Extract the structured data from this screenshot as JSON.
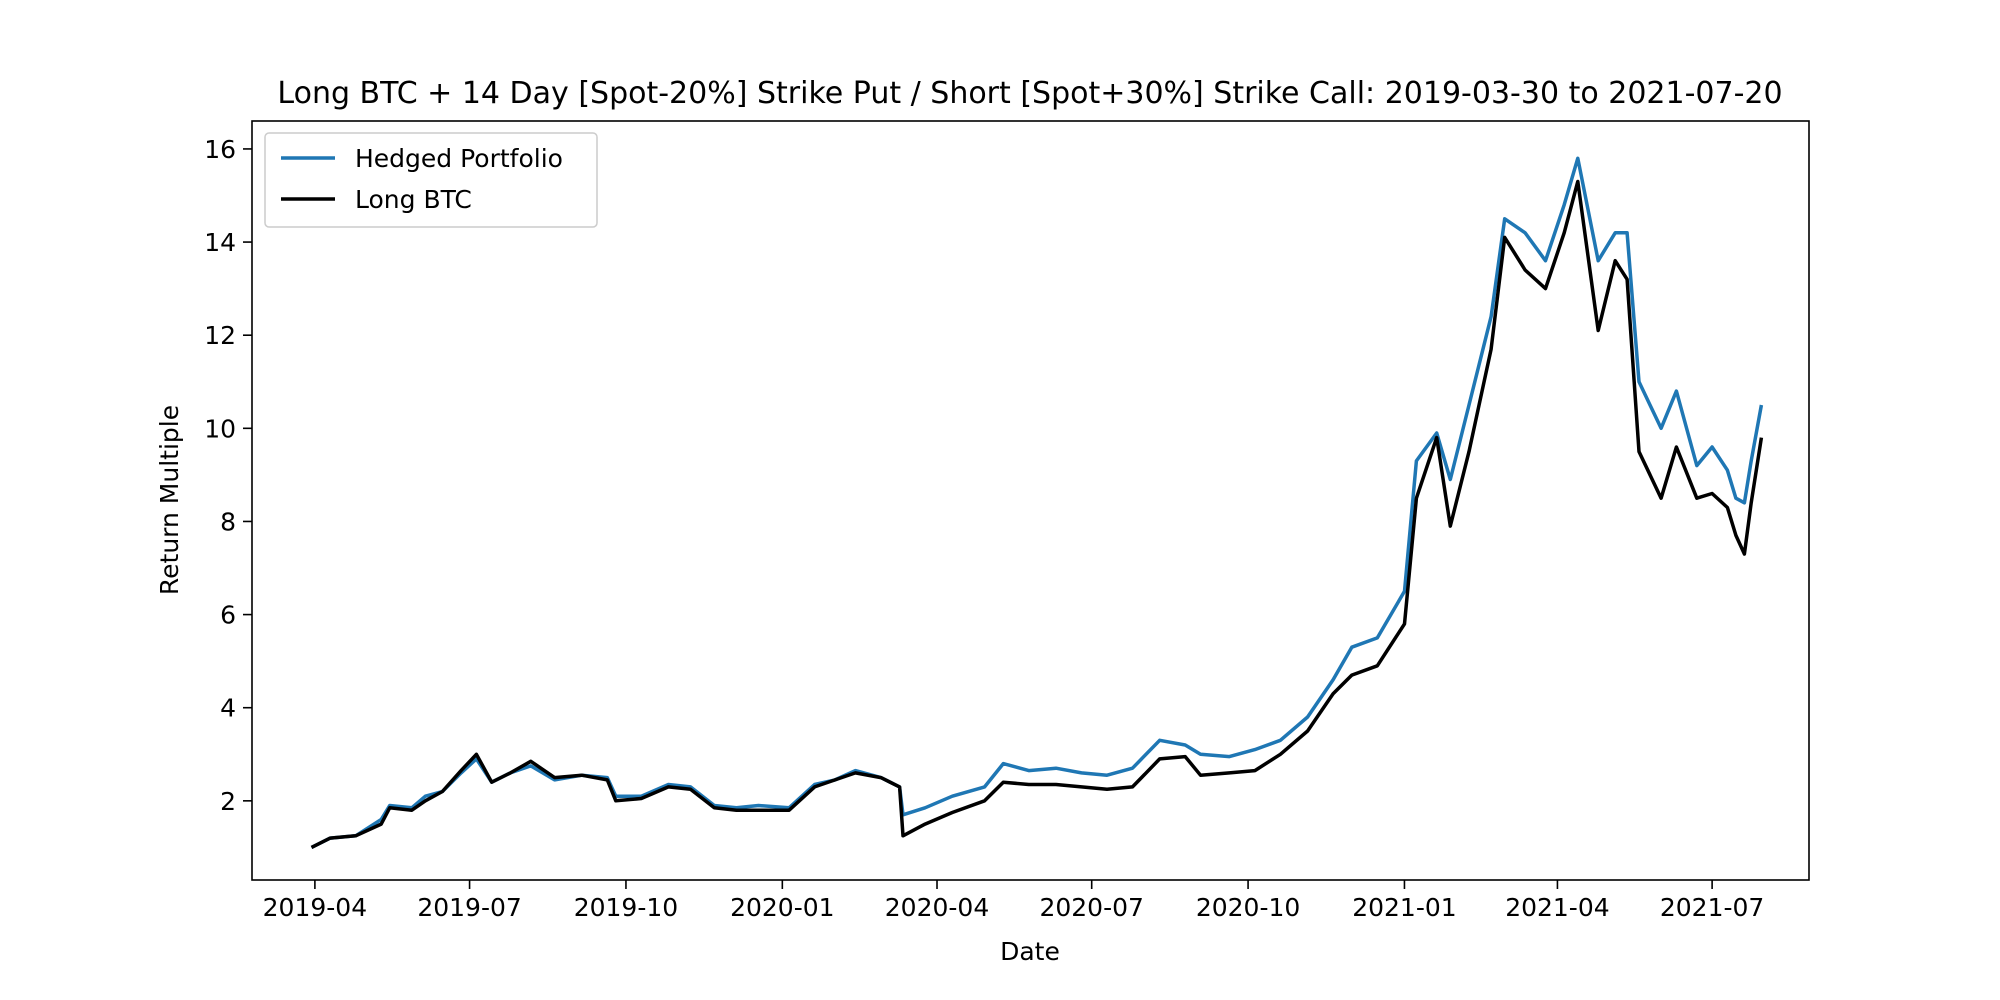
{
  "chart_data": {
    "type": "line",
    "title": "Long BTC + 14 Day [Spot-20%] Strike Put / Short [Spot+30%] Strike Call: 2019-03-30 to 2021-07-20",
    "xlabel": "Date",
    "ylabel": "Return Multiple",
    "xlim": [
      "2019-02-23",
      "2021-08-27"
    ],
    "ylim": [
      0.3,
      16.6
    ],
    "x_ticks": [
      "2019-04",
      "2019-07",
      "2019-10",
      "2020-01",
      "2020-04",
      "2020-07",
      "2020-10",
      "2021-01",
      "2021-04",
      "2021-07"
    ],
    "y_ticks": [
      2,
      4,
      6,
      8,
      10,
      12,
      14,
      16
    ],
    "grid": false,
    "legend": "upper left",
    "colors": {
      "hedged": "#1f77b4",
      "long": "#000000"
    },
    "x": [
      "2019-03-30",
      "2019-04-10",
      "2019-04-25",
      "2019-05-10",
      "2019-05-15",
      "2019-05-28",
      "2019-06-05",
      "2019-06-15",
      "2019-06-26",
      "2019-07-05",
      "2019-07-14",
      "2019-07-25",
      "2019-08-06",
      "2019-08-20",
      "2019-09-05",
      "2019-09-20",
      "2019-09-25",
      "2019-10-10",
      "2019-10-26",
      "2019-11-08",
      "2019-11-22",
      "2019-12-05",
      "2019-12-18",
      "2020-01-05",
      "2020-01-20",
      "2020-02-01",
      "2020-02-13",
      "2020-02-28",
      "2020-03-10",
      "2020-03-12",
      "2020-03-25",
      "2020-04-10",
      "2020-04-29",
      "2020-05-10",
      "2020-05-25",
      "2020-06-10",
      "2020-06-25",
      "2020-07-10",
      "2020-07-25",
      "2020-08-10",
      "2020-08-25",
      "2020-09-03",
      "2020-09-20",
      "2020-10-05",
      "2020-10-20",
      "2020-11-05",
      "2020-11-20",
      "2020-12-01",
      "2020-12-16",
      "2021-01-01",
      "2021-01-08",
      "2021-01-20",
      "2021-01-28",
      "2021-02-08",
      "2021-02-21",
      "2021-03-01",
      "2021-03-13",
      "2021-03-25",
      "2021-04-05",
      "2021-04-13",
      "2021-04-25",
      "2021-05-05",
      "2021-05-12",
      "2021-05-19",
      "2021-06-01",
      "2021-06-10",
      "2021-06-22",
      "2021-07-01",
      "2021-07-10",
      "2021-07-15",
      "2021-07-20",
      "2021-07-24",
      "2021-07-30"
    ],
    "series": [
      {
        "name": "Hedged Portfolio",
        "values": [
          1.0,
          1.2,
          1.25,
          1.6,
          1.9,
          1.85,
          2.1,
          2.2,
          2.6,
          2.9,
          2.4,
          2.6,
          2.75,
          2.45,
          2.55,
          2.5,
          2.1,
          2.1,
          2.35,
          2.3,
          1.9,
          1.85,
          1.9,
          1.85,
          2.35,
          2.45,
          2.65,
          2.5,
          2.3,
          1.7,
          1.85,
          2.1,
          2.3,
          2.8,
          2.65,
          2.7,
          2.6,
          2.55,
          2.7,
          3.3,
          3.2,
          3.0,
          2.95,
          3.1,
          3.3,
          3.8,
          4.6,
          5.3,
          5.5,
          6.5,
          9.3,
          9.9,
          8.9,
          10.5,
          12.4,
          14.5,
          14.2,
          13.6,
          14.8,
          15.8,
          13.6,
          14.2,
          14.2,
          11.0,
          10.0,
          10.8,
          9.2,
          9.6,
          9.1,
          8.5,
          8.4,
          9.3,
          10.5
        ]
      },
      {
        "name": "Long BTC",
        "values": [
          1.0,
          1.2,
          1.25,
          1.5,
          1.85,
          1.8,
          2.0,
          2.2,
          2.65,
          3.0,
          2.4,
          2.6,
          2.85,
          2.5,
          2.55,
          2.45,
          2.0,
          2.05,
          2.3,
          2.25,
          1.85,
          1.8,
          1.8,
          1.8,
          2.3,
          2.45,
          2.6,
          2.5,
          2.3,
          1.25,
          1.5,
          1.75,
          2.0,
          2.4,
          2.35,
          2.35,
          2.3,
          2.25,
          2.3,
          2.9,
          2.95,
          2.55,
          2.6,
          2.65,
          3.0,
          3.5,
          4.3,
          4.7,
          4.9,
          5.8,
          8.5,
          9.8,
          7.9,
          9.5,
          11.7,
          14.1,
          13.4,
          13.0,
          14.2,
          15.3,
          12.1,
          13.6,
          13.2,
          9.5,
          8.5,
          9.6,
          8.5,
          8.6,
          8.3,
          7.7,
          7.3,
          8.4,
          9.8
        ]
      }
    ]
  }
}
